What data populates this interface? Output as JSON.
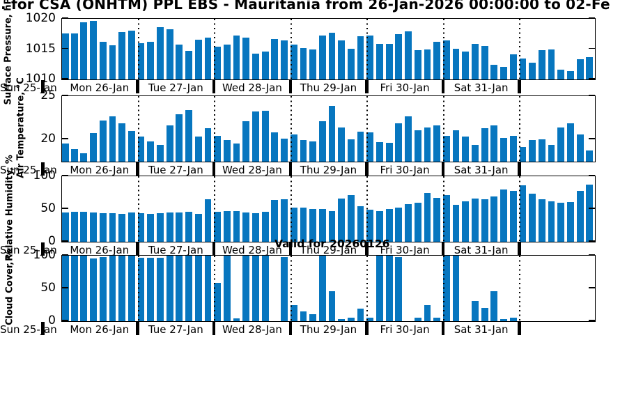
{
  "title": {
    "text": ". for CSA (ONHTM) PPL EBS  - Mauritania from 26-Jan-2026 00:00:00 to 02-Fe"
  },
  "annotation": {
    "valid_text": "Valid for 20260126"
  },
  "axis": {
    "pre_label": "Sun 25-Jan",
    "day_labels": [
      "Mon 26-Jan",
      "Tue 27-Jan",
      "Wed 28-Jan",
      "Thu 29-Jan",
      "Fri 30-Jan",
      "Sat 31-Jan",
      ""
    ]
  },
  "colors": {
    "bar": "#0776BF",
    "axis": "#000000",
    "background": "#FFFFFF"
  },
  "chart_data": [
    {
      "type": "bar",
      "ylabel": "Surface Pressure, hPa",
      "ylim": [
        1010,
        1020
      ],
      "yticks": [
        1010,
        1015,
        1020
      ],
      "grid": "vertical-day-boundaries-dotted",
      "legend": "none",
      "x": "3-hourly from Mon 26-Jan 00:00 to Sun 01-Feb 21:00",
      "values": [
        1017.6,
        1017.6,
        1019.4,
        1019.6,
        1016.2,
        1015.6,
        1017.8,
        1018.1,
        1016.0,
        1016.2,
        1018.6,
        1018.3,
        1015.8,
        1014.7,
        1016.6,
        1016.9,
        1015.4,
        1015.7,
        1017.2,
        1016.9,
        1014.2,
        1014.6,
        1016.7,
        1016.4,
        1015.7,
        1015.2,
        1014.9,
        1017.3,
        1017.7,
        1016.4,
        1015.1,
        1017.1,
        1017.2,
        1015.9,
        1015.9,
        1017.5,
        1017.9,
        1014.8,
        1015.0,
        1016.2,
        1016.4,
        1015.1,
        1014.6,
        1015.9,
        1015.5,
        1012.4,
        1012.1,
        1014.1,
        1013.4,
        1012.8,
        1014.8,
        1014.9,
        1011.6,
        1011.4,
        1013.3,
        1013.7
      ]
    },
    {
      "type": "bar",
      "ylabel": "Air Temperature, °C",
      "ylim": [
        17.44,
        25
      ],
      "yticks": [
        20,
        25
      ],
      "grid": "vertical-day-boundaries-dotted",
      "legend": "none",
      "x": "3-hourly from Mon 26-Jan 00:00 to Sun 01-Feb 21:00",
      "values": [
        19.5,
        18.9,
        18.4,
        20.7,
        22.2,
        22.7,
        21.9,
        21.0,
        20.3,
        19.8,
        19.4,
        21.6,
        22.9,
        23.4,
        20.3,
        21.3,
        20.4,
        19.9,
        19.5,
        22.1,
        23.2,
        23.3,
        20.8,
        20.1,
        20.6,
        19.9,
        19.8,
        22.1,
        23.9,
        21.4,
        20.0,
        20.9,
        20.8,
        19.7,
        19.6,
        21.9,
        22.7,
        21.1,
        21.4,
        21.6,
        20.4,
        21.1,
        20.3,
        19.4,
        21.3,
        21.6,
        20.2,
        20.4,
        19.1,
        19.9,
        20.0,
        19.4,
        21.4,
        21.9,
        20.6,
        18.7
      ]
    },
    {
      "type": "bar",
      "ylabel": "Relative Humidity, %",
      "ylim": [
        0,
        100
      ],
      "yticks": [
        0,
        50,
        100
      ],
      "grid": "vertical-day-boundaries-dotted",
      "legend": "none",
      "x": "3-hourly from Mon 26-Jan 00:00 to Sun 01-Feb 21:00",
      "values": [
        45,
        46,
        46,
        45,
        44,
        44,
        43,
        45,
        44,
        43,
        44,
        45,
        45,
        46,
        43,
        65,
        46,
        47,
        47,
        45,
        44,
        46,
        64,
        65,
        52,
        52,
        50,
        50,
        47,
        66,
        71,
        54,
        49,
        47,
        50,
        52,
        57,
        60,
        75,
        67,
        71,
        56,
        62,
        66,
        65,
        69,
        80,
        78,
        86,
        73,
        65,
        62,
        60,
        61,
        78,
        87
      ]
    },
    {
      "type": "bar",
      "ylabel": "Cloud Cover, %",
      "ylim": [
        0,
        100
      ],
      "yticks": [
        0,
        50,
        100
      ],
      "grid": "vertical-day-boundaries-dotted",
      "legend": "none",
      "x": "3-hourly from Mon 26-Jan 00:00 to Sun 01-Feb 21:00 (no data on final day)",
      "values": [
        100,
        100,
        100,
        96,
        98,
        100,
        100,
        100,
        97,
        97,
        97,
        100,
        100,
        100,
        100,
        100,
        58,
        100,
        4,
        100,
        100,
        100,
        0,
        98,
        25,
        15,
        11,
        100,
        46,
        3,
        5,
        19,
        5,
        100,
        100,
        98,
        0,
        5,
        24,
        5,
        100,
        100,
        0,
        31,
        20,
        46,
        3,
        5,
        0,
        0,
        0,
        0,
        0,
        0,
        0,
        0
      ]
    }
  ]
}
